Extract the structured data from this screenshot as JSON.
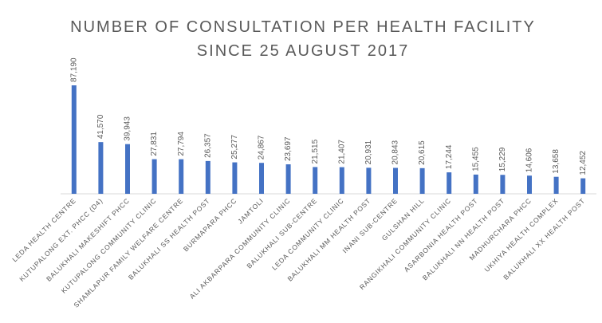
{
  "chart_data": {
    "type": "bar",
    "title": "NUMBER OF CONSULTATION PER HEALTH FACILITY",
    "subtitle": "SINCE 25 AUGUST 2017",
    "categories": [
      "LEDA HEALTH CENTRE",
      "KUTUPALONG EXT. PHCC (D4)",
      "BALUKHALI MAKESHIFT PHCC",
      "KUTUPALONG COMMUNITY CLINIC",
      "SHAMLAPUR FAMILY WELFARE CENTRE",
      "BALUKHALI SS HEALTH POST",
      "BURMAPARA PHCC",
      "JAMTOLI",
      "ALI AKBARPARA COMMUNITY CLINIC",
      "BALUKHALI SUB-CENTRE",
      "LEDA COMMUNITY CLINIC",
      "BALUKHALI MM HEALTH POST",
      "INANI SUB-CENTRE",
      "GULSHAN HILL",
      "RANGIKHALI COMMUNITY CLINIC",
      "ASARBONIA HEALTH POST",
      "BALUKHALI NN HEALTH POST",
      "MADHURCHARA PHCC",
      "UKHIYA HEALTH COMPLEX",
      "BALUKHALI XX HEALTH POST"
    ],
    "values": [
      87190,
      41570,
      39943,
      27831,
      27794,
      26357,
      25277,
      24867,
      23697,
      21515,
      21407,
      20931,
      20843,
      20615,
      17244,
      15455,
      15229,
      14606,
      13658,
      12452
    ],
    "value_labels": [
      "87,190",
      "41,570",
      "39,943",
      "27,831",
      "27,794",
      "26,357",
      "25,277",
      "24,867",
      "23,697",
      "21,515",
      "21,407",
      "20,931",
      "20,843",
      "20,615",
      "17,244",
      "15,455",
      "15,229",
      "14,606",
      "13,658",
      "12,452"
    ],
    "color": "#4472c4"
  }
}
